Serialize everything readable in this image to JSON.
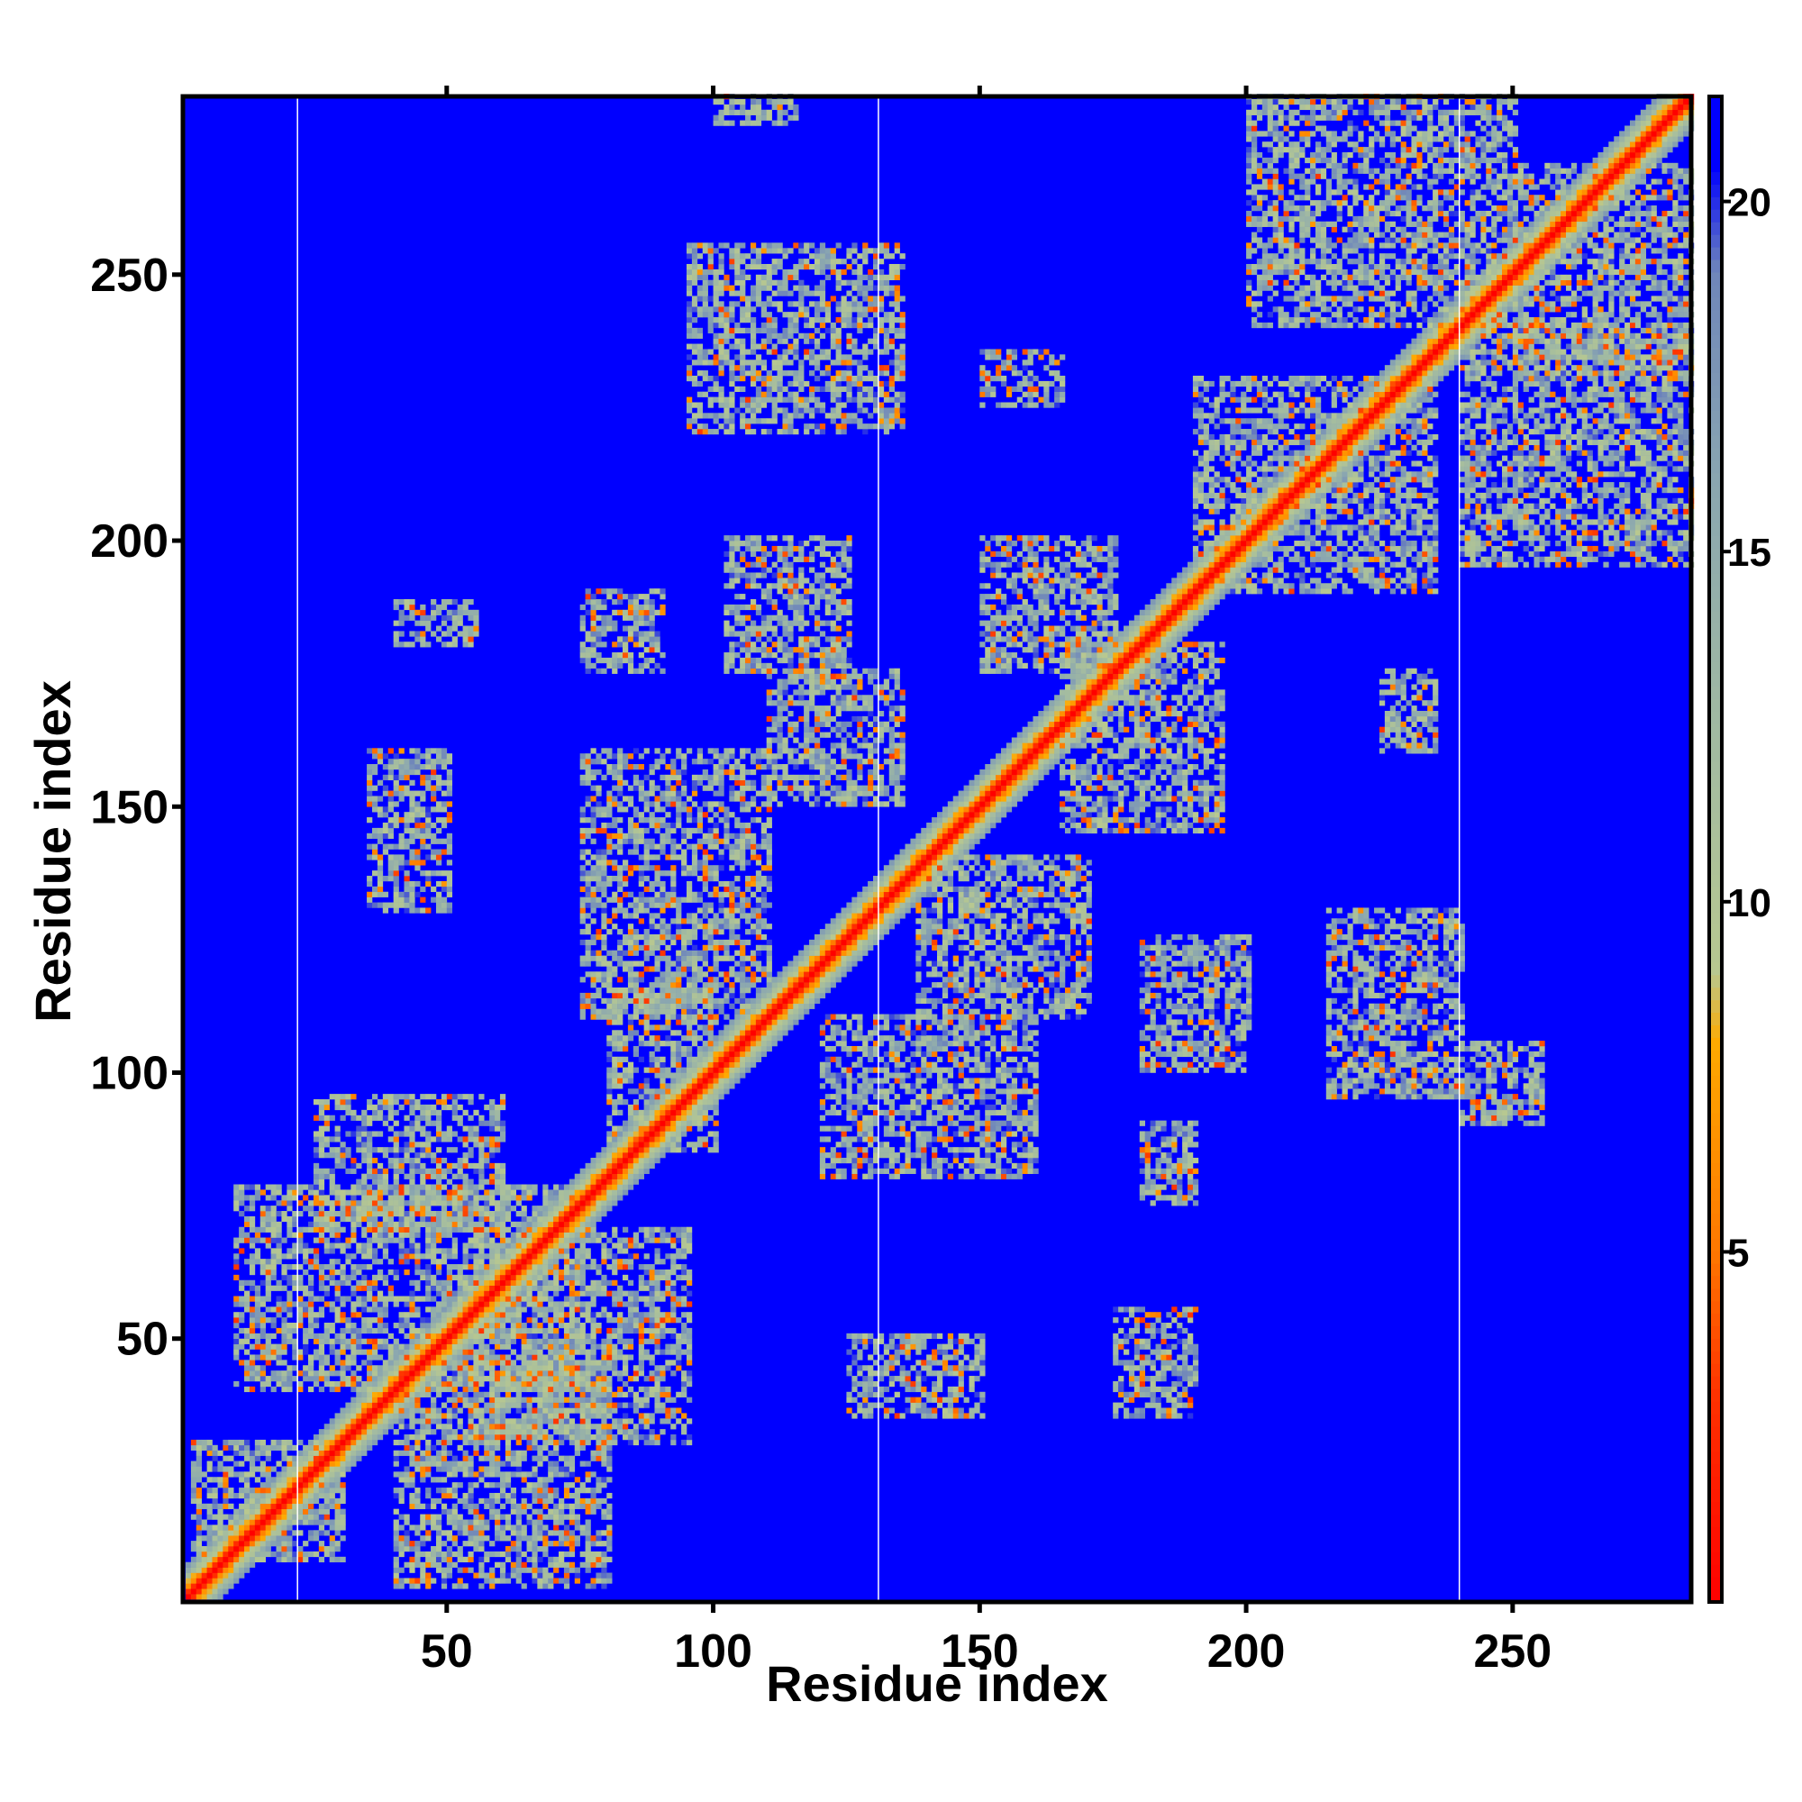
{
  "chart_data": {
    "type": "heatmap",
    "title": "",
    "xlabel": "Residue index",
    "ylabel": "Residue index",
    "n_residues": 283,
    "xlim": [
      1,
      283
    ],
    "ylim": [
      1,
      283
    ],
    "x_ticks": [
      50,
      100,
      150,
      200,
      250
    ],
    "y_ticks": [
      50,
      100,
      150,
      200,
      250
    ],
    "colorbar": {
      "range": [
        0,
        21.5
      ],
      "ticks": [
        5,
        10,
        15,
        20
      ],
      "colors": [
        {
          "value": 0,
          "color": "#ff0000"
        },
        {
          "value": 3,
          "color": "#ff3300"
        },
        {
          "value": 5,
          "color": "#ff7700"
        },
        {
          "value": 8,
          "color": "#ffaa00"
        },
        {
          "value": 9,
          "color": "#b8c890"
        },
        {
          "value": 12,
          "color": "#a4bca0"
        },
        {
          "value": 16,
          "color": "#8aa6b0"
        },
        {
          "value": 19,
          "color": "#6f86ba"
        },
        {
          "value": 20.5,
          "color": "#0000ff"
        }
      ],
      "background_color": "#0000ff"
    },
    "gap_columns": [
      22,
      131,
      240
    ],
    "diagonal_band_width": 6,
    "contact_clusters": [
      {
        "x": [
          2,
          30
        ],
        "y": [
          8,
          30
        ]
      },
      {
        "x": [
          10,
          75
        ],
        "y": [
          40,
          78
        ]
      },
      {
        "x": [
          40,
          80
        ],
        "y": [
          3,
          45
        ]
      },
      {
        "x": [
          55,
          95
        ],
        "y": [
          30,
          70
        ]
      },
      {
        "x": [
          25,
          60
        ],
        "y": [
          70,
          95
        ]
      },
      {
        "x": [
          40,
          55
        ],
        "y": [
          180,
          188
        ]
      },
      {
        "x": [
          35,
          50
        ],
        "y": [
          130,
          160
        ]
      },
      {
        "x": [
          75,
          90
        ],
        "y": [
          175,
          190
        ]
      },
      {
        "x": [
          95,
          135
        ],
        "y": [
          220,
          255
        ]
      },
      {
        "x": [
          102,
          125
        ],
        "y": [
          175,
          200
        ]
      },
      {
        "x": [
          110,
          135
        ],
        "y": [
          150,
          175
        ]
      },
      {
        "x": [
          75,
          110
        ],
        "y": [
          110,
          160
        ]
      },
      {
        "x": [
          80,
          100
        ],
        "y": [
          85,
          115
        ]
      },
      {
        "x": [
          120,
          160
        ],
        "y": [
          80,
          110
        ]
      },
      {
        "x": [
          138,
          170
        ],
        "y": [
          110,
          140
        ]
      },
      {
        "x": [
          125,
          150
        ],
        "y": [
          35,
          50
        ]
      },
      {
        "x": [
          150,
          175
        ],
        "y": [
          175,
          200
        ]
      },
      {
        "x": [
          165,
          195
        ],
        "y": [
          145,
          180
        ]
      },
      {
        "x": [
          180,
          200
        ],
        "y": [
          100,
          125
        ]
      },
      {
        "x": [
          175,
          190
        ],
        "y": [
          35,
          55
        ]
      },
      {
        "x": [
          180,
          190
        ],
        "y": [
          75,
          90
        ]
      },
      {
        "x": [
          150,
          165
        ],
        "y": [
          225,
          235
        ]
      },
      {
        "x": [
          190,
          235
        ],
        "y": [
          190,
          230
        ]
      },
      {
        "x": [
          200,
          250
        ],
        "y": [
          240,
          283
        ]
      },
      {
        "x": [
          240,
          283
        ],
        "y": [
          195,
          240
        ]
      },
      {
        "x": [
          250,
          283
        ],
        "y": [
          230,
          270
        ]
      },
      {
        "x": [
          215,
          240
        ],
        "y": [
          95,
          130
        ]
      },
      {
        "x": [
          240,
          255
        ],
        "y": [
          90,
          105
        ]
      },
      {
        "x": [
          225,
          235
        ],
        "y": [
          160,
          175
        ]
      },
      {
        "x": [
          100,
          115
        ],
        "y": [
          278,
          283
        ]
      }
    ]
  }
}
